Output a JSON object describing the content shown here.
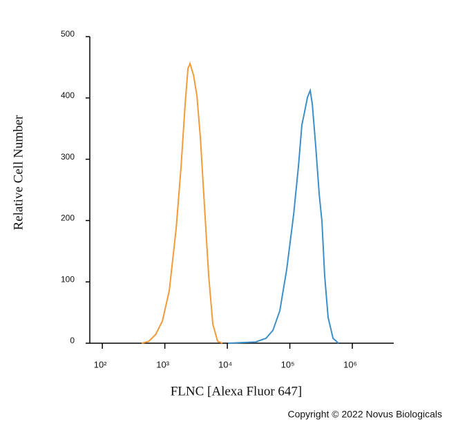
{
  "chart_data": {
    "type": "histogram-lines",
    "xlabel": "FLNC [Alexa Fluor 647]",
    "ylabel": "Relative Cell Number",
    "annotation": "Copyright © 2022 Novus Biologicals",
    "xscale": "log",
    "xlim": [
      63,
      4600000
    ],
    "ylim": [
      0,
      500
    ],
    "xticks": [
      {
        "value": 100,
        "label": "10²"
      },
      {
        "value": 1000,
        "label": "10³"
      },
      {
        "value": 10000,
        "label": "10⁴"
      },
      {
        "value": 100000,
        "label": "10⁵"
      },
      {
        "value": 1000000,
        "label": "10⁶"
      }
    ],
    "yticks": [
      0,
      100,
      200,
      300,
      400,
      500
    ],
    "series": [
      {
        "color": "#f39a3a",
        "x": [
          427,
          550,
          710,
          915,
          1180,
          1520,
          1820,
          2120,
          2345,
          2530,
          2880,
          3265,
          3710,
          4320,
          5035,
          5860,
          7000,
          8370
        ],
        "values": [
          0,
          3,
          14,
          36,
          86,
          188,
          289,
          391,
          448,
          456,
          437,
          403,
          335,
          222,
          110,
          31,
          3,
          0
        ]
      },
      {
        "color": "#3a8fcb",
        "x": [
          10260,
          17060,
          28380,
          41590,
          53580,
          69180,
          89130,
          115100,
          137400,
          156000,
          172900,
          191400,
          211800,
          228600,
          259400,
          295100,
          326600,
          361400,
          410300,
          491000,
          601000
        ],
        "values": [
          0,
          1,
          2,
          8,
          21,
          53,
          120,
          210,
          289,
          356,
          378,
          401,
          412,
          390,
          322,
          243,
          198,
          110,
          42,
          8,
          0
        ]
      }
    ]
  }
}
